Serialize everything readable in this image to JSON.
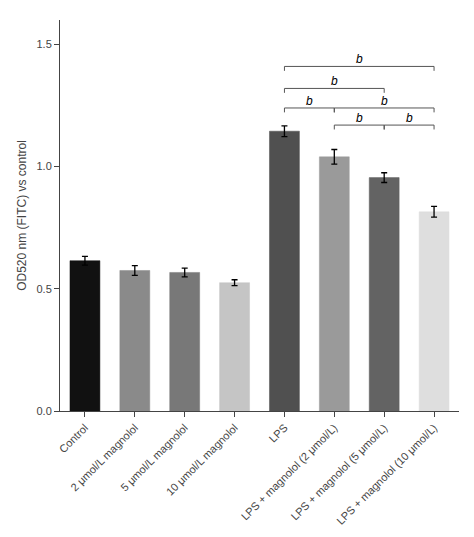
{
  "chart_data": {
    "type": "bar",
    "categories": [
      "Control",
      "2 μmol/L magnolol",
      "5 μmol/L magnolol",
      "10 μmol/L magnolol",
      "LPS",
      "LPS + magnolol (2 μmol/L)",
      "LPS + magnolol (5 μmol/L)",
      "LPS + magnolol (10 μmol/L)"
    ],
    "values": [
      0.615,
      0.575,
      0.567,
      0.525,
      1.145,
      1.04,
      0.955,
      0.815
    ],
    "errors": [
      0.018,
      0.02,
      0.018,
      0.012,
      0.022,
      0.03,
      0.02,
      0.022
    ],
    "colors": [
      "#111111",
      "#8a8a8a",
      "#787878",
      "#c5c5c5",
      "#505050",
      "#9a9a9a",
      "#636363",
      "#dedede"
    ],
    "ylabel": "OD520 nm (FITC) vs control",
    "ylim": [
      0.0,
      1.6
    ],
    "yticks": [
      {
        "value": 0,
        "label": "0.0"
      },
      0.5,
      {
        "value": 1,
        "label": "1.0"
      },
      1.5
    ],
    "grid": false,
    "annotations": [
      {
        "text": "b",
        "from": "LPS",
        "to": "LPS + magnolol (2 μmol/L)",
        "y": 1.24
      },
      {
        "text": "b",
        "from": "LPS",
        "to": "LPS + magnolol (5 μmol/L)",
        "y": 1.32
      },
      {
        "text": "b",
        "from": "LPS",
        "to": "LPS + magnolol (10 μmol/L)",
        "y": 1.41
      },
      {
        "text": "b",
        "from": "LPS + magnolol (2 μmol/L)",
        "to": "LPS + magnolol (5 μmol/L)",
        "y": 1.17
      },
      {
        "text": "b",
        "from": "LPS + magnolol (2 μmol/L)",
        "to": "LPS + magnolol (10 μmol/L)",
        "y": 1.24
      },
      {
        "text": "b",
        "from": "LPS + magnolol (5 μmol/L)",
        "to": "LPS + magnolol (10 μmol/L)",
        "y": 1.17
      }
    ]
  }
}
